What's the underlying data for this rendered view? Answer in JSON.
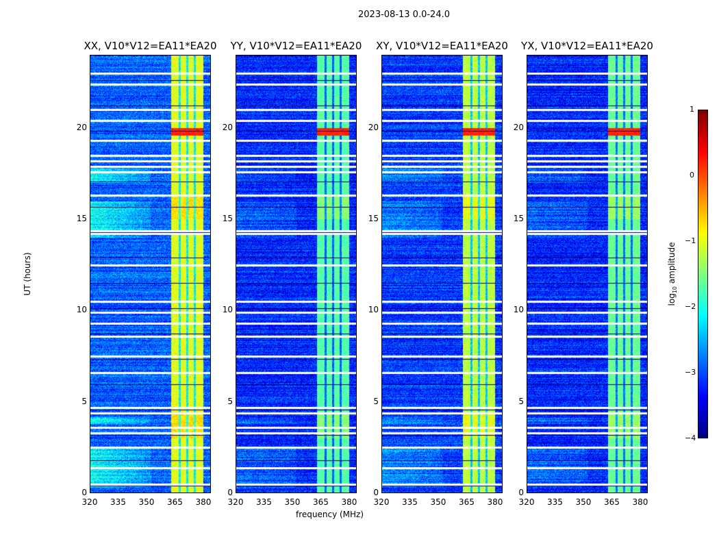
{
  "suptitle": "2023-08-13 0.0-24.0",
  "xlabel": "frequency (MHz)",
  "ylabel": "UT (hours)",
  "colorbar": {
    "label_base": "log",
    "label_sub": "10",
    "label_rest": " amplitude",
    "ticks": [
      "1",
      "0",
      "−1",
      "−2",
      "−3",
      "−4"
    ],
    "range": [
      -4,
      1
    ],
    "colormap": "jet"
  },
  "chart_data": [
    {
      "type": "heatmap",
      "title": "XX, V10*V12=EA11*EA20",
      "xlim": [
        320,
        384
      ],
      "ylim": [
        0,
        24
      ],
      "xticks": [
        "320",
        "335",
        "350",
        "365",
        "380"
      ],
      "yticks": [
        "0",
        "5",
        "10",
        "15",
        "20"
      ],
      "background_log_amp": -2.9,
      "band_log_amp": -1.0,
      "lowfreq_excess": 0.6
    },
    {
      "type": "heatmap",
      "title": "YY, V10*V12=EA11*EA20",
      "xlim": [
        320,
        384
      ],
      "ylim": [
        0,
        24
      ],
      "xticks": [
        "320",
        "335",
        "350",
        "365",
        "380"
      ],
      "yticks": [
        "0",
        "5",
        "10",
        "15",
        "20"
      ],
      "background_log_amp": -3.2,
      "band_log_amp": -1.7,
      "lowfreq_excess": 0.1
    },
    {
      "type": "heatmap",
      "title": "XY, V10*V12=EA11*EA20",
      "xlim": [
        320,
        384
      ],
      "ylim": [
        0,
        24
      ],
      "xticks": [
        "320",
        "335",
        "350",
        "365",
        "380"
      ],
      "yticks": [
        "0",
        "5",
        "10",
        "15",
        "20"
      ],
      "background_log_amp": -3.1,
      "band_log_amp": -1.2,
      "lowfreq_excess": 0.2
    },
    {
      "type": "heatmap",
      "title": "YX, V10*V12=EA11*EA20",
      "xlim": [
        320,
        384
      ],
      "ylim": [
        0,
        24
      ],
      "xticks": [
        "320",
        "335",
        "350",
        "365",
        "380"
      ],
      "yticks": [
        "0",
        "5",
        "10",
        "15",
        "20"
      ],
      "background_log_amp": -3.2,
      "band_log_amp": -1.6,
      "lowfreq_excess": 0.1
    }
  ],
  "rfi_band_mhz": [
    363,
    380
  ],
  "strong_rfi_hours": [
    19.6,
    20.0
  ],
  "flagged_hours": [
    0.5,
    1.4,
    2.5,
    3.3,
    3.6,
    4.4,
    4.7,
    6.6,
    7.5,
    8.6,
    9.3,
    9.9,
    10.5,
    12.5,
    14.2,
    14.35,
    16.3,
    17.6,
    17.9,
    18.2,
    18.5,
    19.3,
    20.4,
    21.0,
    22.4,
    23.0
  ]
}
